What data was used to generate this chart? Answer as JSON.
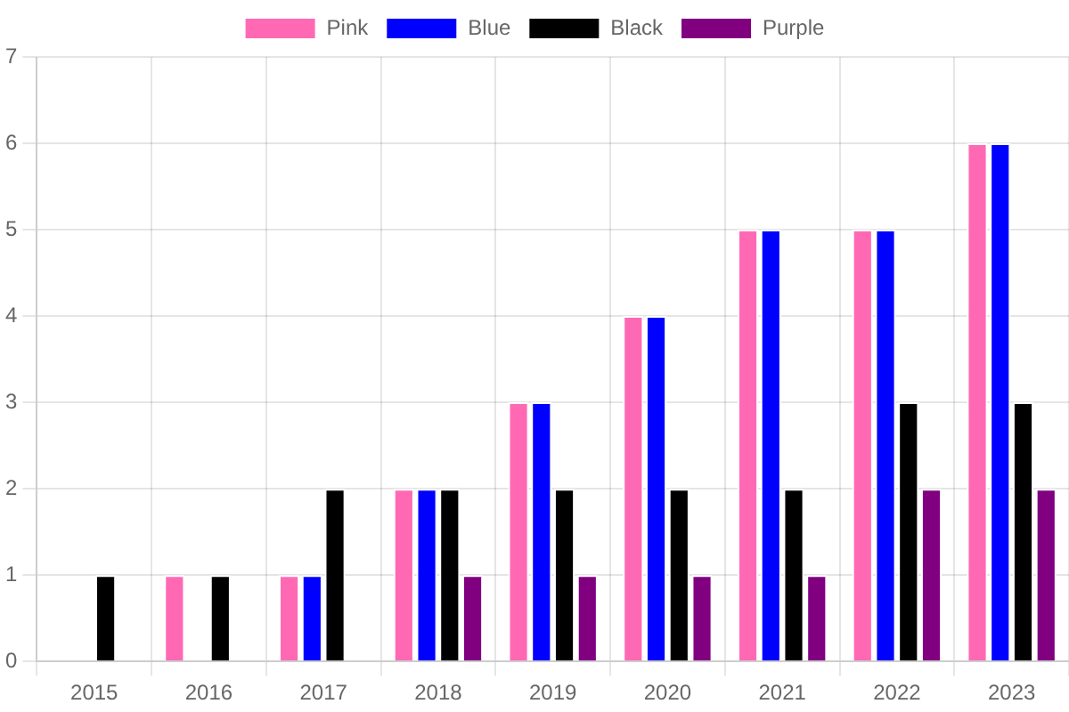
{
  "chart_data": {
    "type": "bar",
    "categories": [
      "2015",
      "2016",
      "2017",
      "2018",
      "2019",
      "2020",
      "2021",
      "2022",
      "2023"
    ],
    "series": [
      {
        "name": "Pink",
        "color": "#ff69b4",
        "values": [
          0,
          1,
          1,
          2,
          3,
          4,
          5,
          5,
          6
        ]
      },
      {
        "name": "Blue",
        "color": "#0000ff",
        "values": [
          0,
          0,
          1,
          2,
          3,
          4,
          5,
          5,
          6
        ]
      },
      {
        "name": "Black",
        "color": "#000000",
        "values": [
          1,
          1,
          2,
          2,
          2,
          2,
          2,
          3,
          3
        ]
      },
      {
        "name": "Purple",
        "color": "#800080",
        "values": [
          0,
          0,
          0,
          1,
          1,
          1,
          1,
          2,
          2
        ]
      }
    ],
    "ylim": [
      0,
      7
    ],
    "yticks": [
      0,
      1,
      2,
      3,
      4,
      5,
      6,
      7
    ],
    "grid": true,
    "legend": "top"
  }
}
